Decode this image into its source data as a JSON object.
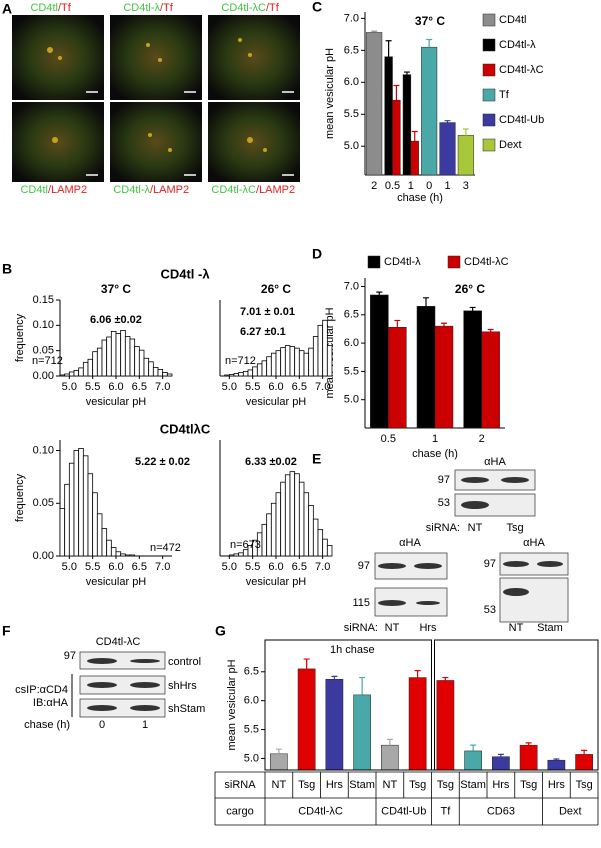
{
  "panels": {
    "letters": [
      "A",
      "B",
      "C",
      "D",
      "E",
      "F",
      "G"
    ],
    "A": {
      "top": [
        {
          "green": "CD4tl",
          "red": " /Tf"
        },
        {
          "green": "CD4tl-λ",
          "red": "/Tf"
        },
        {
          "green": "CD4tl-λC",
          "red": "/Tf"
        }
      ],
      "bottom": [
        {
          "green": "CD4tl",
          "red": "/LAMP2"
        },
        {
          "green": "CD4tl-λ",
          "red": "/LAMP2"
        },
        {
          "green": "CD4tl-λC",
          "red": "/LAMP2"
        }
      ]
    },
    "B": {
      "row1": "CD4tl -λ",
      "row2": "CD4tlλC"
    },
    "E": {
      "top": {
        "antibody": "αHA",
        "markers": [
          "97",
          "53"
        ],
        "sirna_label": "siRNA:",
        "lanes": [
          "NT",
          "Tsg"
        ]
      },
      "left": {
        "antibody": "αHA",
        "markers": [
          "97",
          "115"
        ],
        "sirna_label": "siRNA:",
        "lanes": [
          "NT",
          "Hrs"
        ]
      },
      "right": {
        "antibody": "αHA",
        "markers": [
          "97",
          "53"
        ],
        "lanes": [
          "NT",
          "Stam"
        ]
      }
    },
    "F": {
      "title": "CD4tl-λC",
      "marker": "97",
      "rows": [
        "control",
        "shHrs",
        "shStam"
      ],
      "side": [
        "csIP:αCD4",
        "IB:αHA"
      ],
      "xlabel": "chase (h)",
      "lanes": [
        "0",
        "1"
      ]
    }
  },
  "chart_data": [
    {
      "type": "bar",
      "title": "37° C",
      "ylabel": "mean vesicular pH",
      "xlabel": "chase (h)",
      "categories": [
        "2",
        "0.5",
        "1",
        "0",
        "1",
        "3"
      ],
      "series": [
        {
          "name": "CD4tl",
          "color": "#8c8c8c",
          "values": [
            6.78,
            null,
            null,
            null,
            null,
            null
          ],
          "errors": [
            0.02,
            null,
            null,
            null,
            null,
            null
          ]
        },
        {
          "name": "CD4tl-λ",
          "color": "#000000",
          "values": [
            null,
            6.4,
            6.12,
            null,
            null,
            null
          ],
          "errors": [
            null,
            0.25,
            0.04,
            null,
            null,
            null
          ]
        },
        {
          "name": "CD4tl-λC",
          "color": "#cc0000",
          "values": [
            null,
            5.72,
            5.08,
            null,
            null,
            null
          ],
          "errors": [
            null,
            0.23,
            0.15,
            null,
            null,
            null
          ]
        },
        {
          "name": "Tf",
          "color": "#4aa9a8",
          "values": [
            null,
            null,
            null,
            6.55,
            null,
            null
          ],
          "errors": [
            null,
            null,
            null,
            0.12,
            null,
            null
          ]
        },
        {
          "name": "CD4tl-Ub",
          "color": "#3a3aa0",
          "values": [
            null,
            null,
            null,
            null,
            5.37,
            null
          ],
          "errors": [
            null,
            null,
            null,
            null,
            0.03,
            null
          ]
        },
        {
          "name": "Dext",
          "color": "#a8c83a",
          "values": [
            null,
            null,
            null,
            null,
            null,
            5.17
          ],
          "errors": [
            null,
            null,
            null,
            null,
            null,
            0.1
          ]
        }
      ],
      "ylim": [
        4.55,
        7.1
      ],
      "yticks": [
        {
          "value": 5,
          "label": "5.0"
        },
        5.5,
        {
          "value": 6,
          "label": "6.0"
        },
        6.5,
        {
          "value": 7,
          "label": "7.0"
        }
      ],
      "legend": "right"
    },
    {
      "type": "bar",
      "title": "26° C",
      "ylabel": "mean vesicular pH",
      "xlabel": "chase (h)",
      "categories": [
        "0.5",
        "1",
        "2"
      ],
      "series": [
        {
          "name": "CD4tl-λ",
          "color": "#000000",
          "values": [
            6.85,
            6.65,
            6.57
          ],
          "errors": [
            0.05,
            0.15,
            0.06
          ]
        },
        {
          "name": "CD4tl-λC",
          "color": "#cc0000",
          "values": [
            6.28,
            6.3,
            6.2
          ],
          "errors": [
            0.12,
            0.05,
            0.04
          ]
        }
      ],
      "ylim": [
        4.5,
        7.15
      ],
      "yticks": [
        {
          "value": 5,
          "label": "5.0"
        },
        5.5,
        {
          "value": 6,
          "label": "6.0"
        },
        6.5,
        {
          "value": 7,
          "label": "7.0"
        }
      ],
      "legend": "top"
    },
    {
      "type": "bar",
      "annotation": "1h chase",
      "ylabel": "mean vesicular pH",
      "categories": [
        "NT",
        "Tsg",
        "Hrs",
        "Stam",
        "NT",
        "Tsg",
        "Tsg",
        "Stam",
        "Hrs",
        "Tsg",
        "Hrs",
        "Tsg"
      ],
      "values": [
        5.08,
        6.55,
        6.37,
        6.1,
        5.23,
        6.4,
        6.35,
        5.13,
        5.03,
        5.23,
        4.97,
        5.07
      ],
      "errors": [
        0.08,
        0.17,
        0.05,
        0.3,
        0.1,
        0.12,
        0.05,
        0.1,
        0.04,
        0.04,
        0.02,
        0.07
      ],
      "colors": [
        "#a8a8a8",
        "#e00000",
        "#3a3aa0",
        "#4aa9a8",
        "#a8a8a8",
        "#e00000",
        "#e00000",
        "#4aa9a8",
        "#3a3aa0",
        "#e00000",
        "#3a3aa0",
        "#e00000"
      ],
      "table_headers": [
        "siRNA",
        "cargo"
      ],
      "cargo": [
        "CD4tl-λC",
        null,
        null,
        null,
        "CD4tl-Ub",
        null,
        "Tf",
        "CD63",
        null,
        null,
        "Dext",
        null
      ],
      "ylim": [
        4.8,
        7.05
      ],
      "yticks": [
        {
          "value": 5,
          "label": "5.0"
        },
        5.5,
        {
          "value": 6,
          "label": "6.0"
        },
        6.5
      ]
    },
    {
      "type": "histogram",
      "title": "37° C",
      "ylabel": "frequency",
      "xlabel": "vesicular pH",
      "annotations": [
        "6.06 ±0.02",
        "n=712"
      ],
      "bins": [
        4.8,
        4.9,
        5.0,
        5.1,
        5.2,
        5.3,
        5.4,
        5.5,
        5.6,
        5.7,
        5.8,
        5.9,
        6.0,
        6.1,
        6.2,
        6.3,
        6.4,
        6.5,
        6.6,
        6.7,
        6.8,
        6.9,
        7.0,
        7.1,
        7.2
      ],
      "values": [
        0.002,
        0.004,
        0.008,
        0.011,
        0.016,
        0.027,
        0.033,
        0.048,
        0.055,
        0.071,
        0.077,
        0.088,
        0.084,
        0.09,
        0.078,
        0.073,
        0.058,
        0.051,
        0.035,
        0.028,
        0.017,
        0.013,
        0.007,
        0.004
      ],
      "xlim": [
        4.8,
        7.2
      ],
      "xticks": [
        {
          "value": 5,
          "label": "5.0"
        },
        5.5,
        {
          "value": 6,
          "label": "6.0"
        },
        6.5,
        {
          "value": 7,
          "label": "7.0"
        }
      ],
      "ylim": [
        0,
        0.15
      ],
      "yticks": [
        {
          "value": 0,
          "label": "0.00"
        },
        0.05,
        {
          "value": 0.1,
          "label": "0.10"
        },
        0.15
      ]
    },
    {
      "type": "histogram",
      "title": "26° C",
      "xlabel": "vesicular pH",
      "annotations": [
        "7.01 ± 0.01",
        "6.27 ±0.1",
        "n=712"
      ],
      "bins": [
        4.8,
        4.9,
        5.0,
        5.1,
        5.2,
        5.3,
        5.4,
        5.5,
        5.6,
        5.7,
        5.8,
        5.9,
        6.0,
        6.1,
        6.2,
        6.3,
        6.4,
        6.5,
        6.6,
        6.7,
        6.8,
        6.9,
        7.0,
        7.1,
        7.2
      ],
      "values": [
        0,
        0.002,
        0.003,
        0.005,
        0.007,
        0.009,
        0.012,
        0.018,
        0.024,
        0.03,
        0.038,
        0.045,
        0.05,
        0.056,
        0.06,
        0.058,
        0.055,
        0.05,
        0.045,
        0.055,
        0.078,
        0.1,
        0.11,
        0.06
      ],
      "xlim": [
        4.8,
        7.2
      ],
      "xticks": [
        {
          "value": 5,
          "label": "5.0"
        },
        5.5,
        {
          "value": 6,
          "label": "6.0"
        },
        6.5,
        {
          "value": 7,
          "label": "7.0"
        }
      ],
      "ylim": [
        0,
        0.15
      ]
    },
    {
      "type": "histogram",
      "ylabel": "frequency",
      "xlabel": "vesicular pH",
      "annotations": [
        "5.22 ± 0.02",
        "n=472"
      ],
      "bins": [
        4.8,
        4.9,
        5.0,
        5.1,
        5.2,
        5.3,
        5.4,
        5.5,
        5.6,
        5.7,
        5.8,
        5.9,
        6.0,
        6.1,
        6.2,
        6.3,
        6.4,
        6.5,
        6.6,
        6.7,
        6.8,
        6.9,
        7.0,
        7.1,
        7.2
      ],
      "values": [
        0.045,
        0.068,
        0.088,
        0.1,
        0.102,
        0.095,
        0.078,
        0.06,
        0.04,
        0.026,
        0.015,
        0.008,
        0.004,
        0.002,
        0.001,
        0.001,
        0,
        0,
        0,
        0,
        0,
        0,
        0,
        0
      ],
      "xlim": [
        4.8,
        7.2
      ],
      "xticks": [
        {
          "value": 5,
          "label": "5.0"
        },
        5.5,
        {
          "value": 6,
          "label": "6.0"
        },
        6.5,
        {
          "value": 7,
          "label": "7.0"
        }
      ],
      "ylim": [
        0,
        0.11
      ],
      "yticks": [
        {
          "value": 0,
          "label": "0.00"
        },
        0.05,
        {
          "value": 0.1,
          "label": "0.10"
        }
      ]
    },
    {
      "type": "histogram",
      "xlabel": "vesicular pH",
      "annotations": [
        "6.33 ±0.02",
        "n=673"
      ],
      "bins": [
        4.8,
        4.9,
        5.0,
        5.1,
        5.2,
        5.3,
        5.4,
        5.5,
        5.6,
        5.7,
        5.8,
        5.9,
        6.0,
        6.1,
        6.2,
        6.3,
        6.4,
        6.5,
        6.6,
        6.7,
        6.8,
        6.9,
        7.0,
        7.1,
        7.2
      ],
      "values": [
        0,
        0,
        0.001,
        0.002,
        0.003,
        0.006,
        0.01,
        0.015,
        0.022,
        0.03,
        0.04,
        0.05,
        0.06,
        0.07,
        0.077,
        0.08,
        0.078,
        0.07,
        0.06,
        0.048,
        0.035,
        0.025,
        0.016,
        0.01
      ],
      "xlim": [
        4.8,
        7.2
      ],
      "xticks": [
        {
          "value": 5,
          "label": "5.0"
        },
        5.5,
        {
          "value": 6,
          "label": "6.0"
        },
        6.5,
        {
          "value": 7,
          "label": "7.0"
        }
      ],
      "ylim": [
        0,
        0.11
      ]
    }
  ]
}
